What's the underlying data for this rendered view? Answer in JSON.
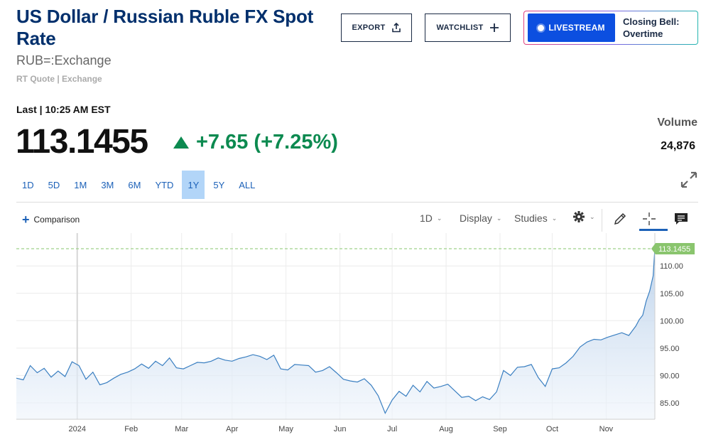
{
  "header": {
    "title": "US Dollar / Russian Ruble FX Spot Rate",
    "symbol": "RUB=:Exchange",
    "quote_source": "RT Quote | Exchange",
    "export_label": "EXPORT",
    "watchlist_label": "WATCHLIST",
    "livestream_label": "LIVESTREAM",
    "livestream_text": "Closing Bell: Overtime"
  },
  "quote": {
    "last_label": "Last | 10:25 AM EST",
    "price": "113.1455",
    "change": "+7.65 (+7.25%)",
    "volume_label": "Volume",
    "volume_value": "24,876"
  },
  "range_tabs": [
    "1D",
    "5D",
    "1M",
    "3M",
    "6M",
    "YTD",
    "1Y",
    "5Y",
    "ALL"
  ],
  "active_range": "1Y",
  "toolbar": {
    "comparison_label": "Comparison",
    "interval_label": "1D",
    "display_label": "Display",
    "studies_label": "Studies"
  },
  "icons": {
    "export": "upload-icon",
    "watchlist": "plus-icon",
    "expand": "expand-arrows-icon",
    "settings": "gear-icon",
    "draw": "pencil-icon",
    "crosshair": "crosshair-icon",
    "notes": "comment-icon"
  },
  "colors": {
    "title": "#002f6c",
    "positive": "#0c8a50",
    "accent": "#1c61b8",
    "livestream": "#0c4fe0",
    "line": "#3a7fc1",
    "last_price_tag": "#8ac56e"
  },
  "chart_data": {
    "type": "area",
    "ylim": [
      82,
      116
    ],
    "y_ticks": [
      85,
      90,
      95,
      100,
      105,
      110
    ],
    "y_tick_labels": [
      "85.00",
      "90.00",
      "95.00",
      "100.00",
      "105.00",
      "110.00"
    ],
    "x_tick_labels": [
      "2024",
      "Feb",
      "Mar",
      "Apr",
      "May",
      "Jun",
      "Jul",
      "Aug",
      "Sep",
      "Oct",
      "Nov"
    ],
    "x_tick_positions": [
      35,
      66,
      95,
      124,
      155,
      186,
      216,
      247,
      278,
      308,
      339
    ],
    "last_price_label": "113.1455",
    "last_price": 113.1455,
    "x_range": [
      0,
      367
    ],
    "x": [
      0,
      4,
      8,
      12,
      16,
      20,
      24,
      28,
      32,
      36,
      40,
      44,
      48,
      52,
      56,
      60,
      64,
      68,
      72,
      76,
      80,
      84,
      88,
      92,
      96,
      100,
      104,
      108,
      112,
      116,
      120,
      124,
      128,
      132,
      136,
      140,
      144,
      148,
      152,
      156,
      160,
      164,
      168,
      172,
      176,
      180,
      184,
      188,
      192,
      196,
      200,
      204,
      208,
      212,
      216,
      220,
      224,
      228,
      232,
      236,
      240,
      244,
      248,
      252,
      256,
      260,
      264,
      268,
      272,
      276,
      280,
      284,
      288,
      292,
      296,
      300,
      304,
      308,
      312,
      316,
      320,
      324,
      328,
      332,
      336,
      340,
      344,
      348,
      352,
      356,
      358,
      360,
      362,
      364,
      366,
      367
    ],
    "values": [
      89.5,
      89.2,
      91.8,
      90.5,
      91.3,
      89.7,
      90.8,
      89.8,
      92.5,
      91.8,
      89.3,
      90.6,
      88.3,
      88.7,
      89.5,
      90.2,
      90.6,
      91.2,
      92.1,
      91.3,
      92.6,
      91.8,
      93.2,
      91.4,
      91.2,
      91.8,
      92.4,
      92.3,
      92.6,
      93.2,
      92.8,
      92.6,
      93.1,
      93.4,
      93.8,
      93.5,
      92.9,
      93.7,
      91.2,
      91.0,
      92.0,
      91.9,
      91.8,
      90.6,
      90.9,
      91.6,
      90.5,
      89.3,
      89.0,
      88.8,
      89.4,
      88.2,
      86.3,
      83.1,
      85.5,
      87.1,
      86.2,
      88.2,
      87.0,
      88.9,
      87.7,
      88.0,
      88.4,
      87.2,
      86.0,
      86.2,
      85.4,
      86.1,
      85.6,
      87.0,
      90.9,
      90.0,
      91.5,
      91.6,
      92.0,
      89.6,
      88.0,
      91.2,
      91.4,
      92.3,
      93.5,
      95.2,
      96.1,
      96.6,
      96.5,
      97.0,
      97.4,
      97.8,
      97.3,
      99.0,
      100.2,
      101.0,
      103.6,
      105.4,
      108.2,
      113.1455
    ]
  }
}
